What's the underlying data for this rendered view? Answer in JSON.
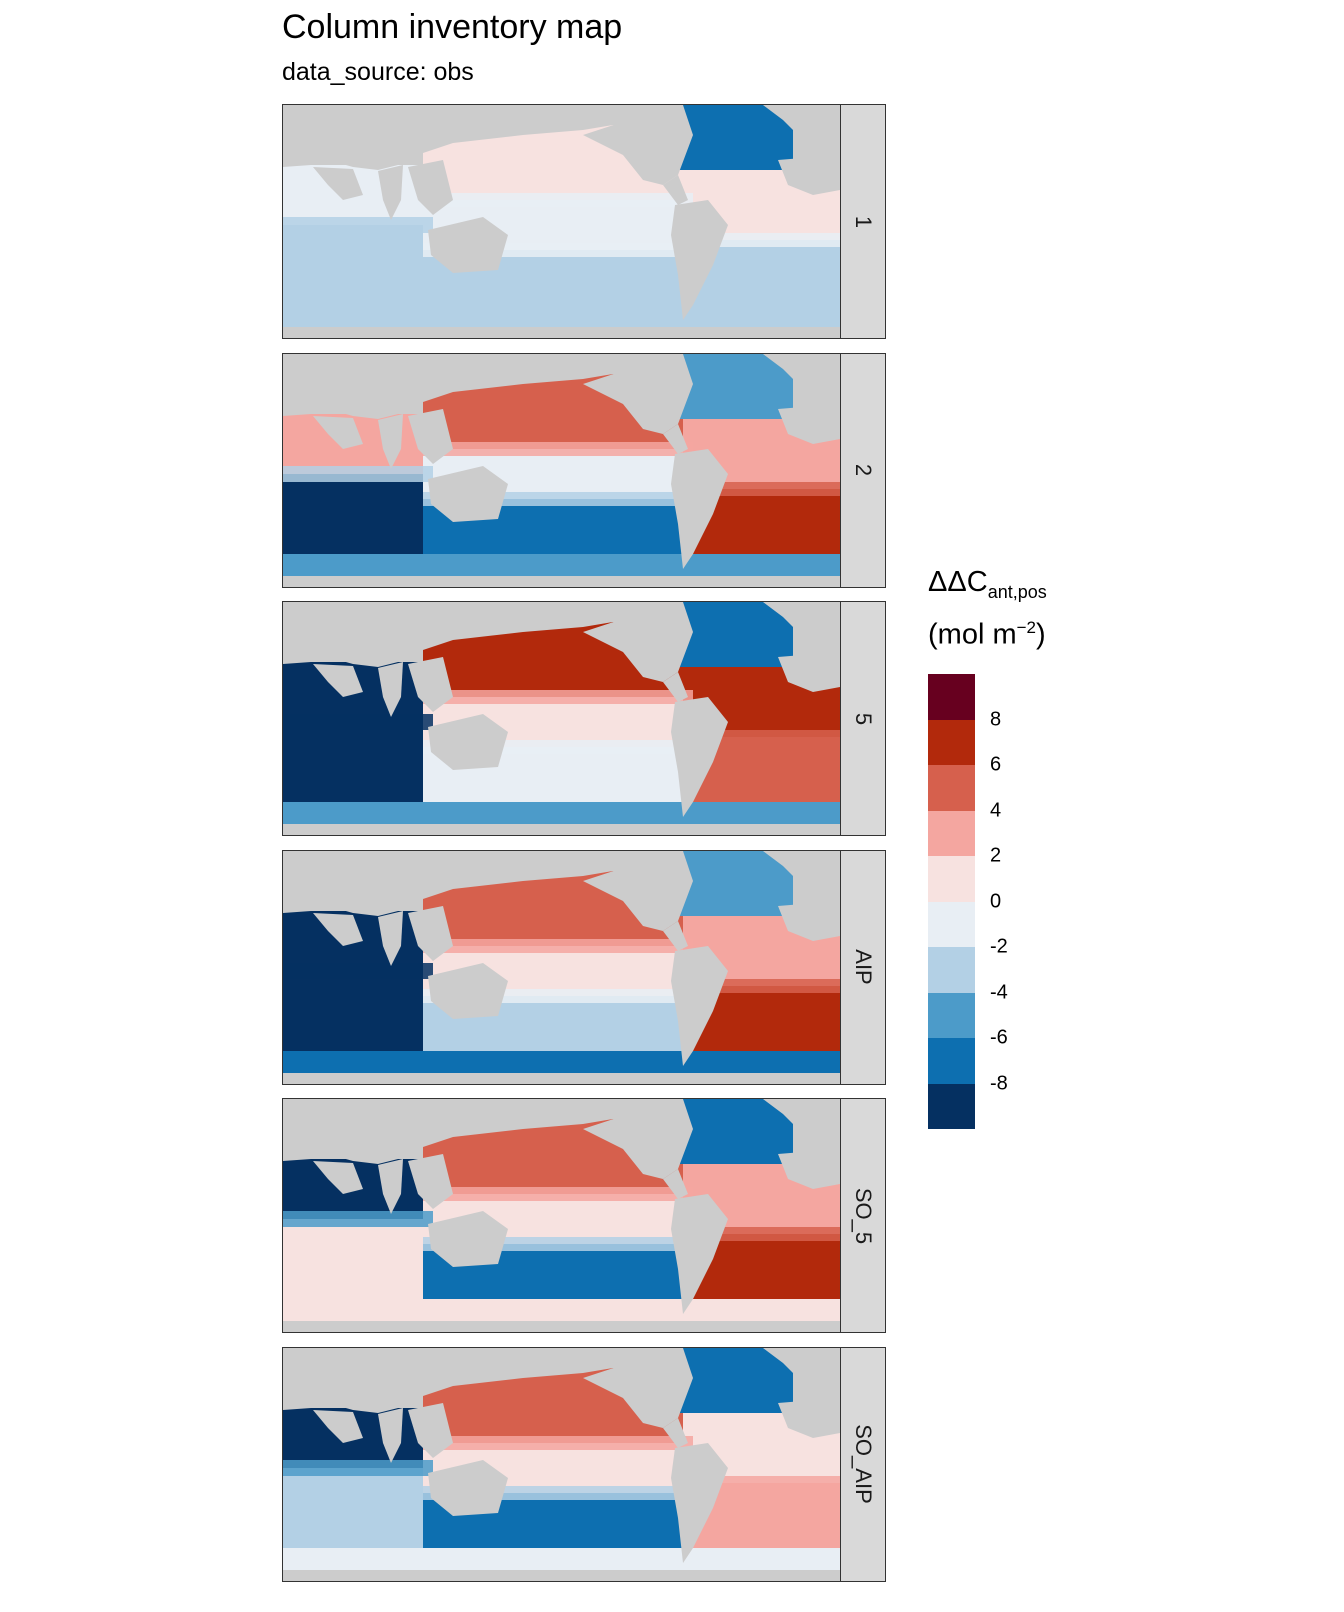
{
  "header": {
    "title": "Column inventory map",
    "subtitle": "data_source: obs"
  },
  "legend": {
    "title_main": "ΔΔC",
    "title_sub": "ant,pos",
    "unit_main": "(mol m",
    "unit_sup": "−2",
    "unit_end": ")",
    "colors": [
      "#67001f",
      "#b2290c",
      "#d6604d",
      "#f4a6a0",
      "#f7e2e0",
      "#e8eef4",
      "#b3d0e5",
      "#4c9bc9",
      "#0d6fb0",
      "#053061"
    ],
    "ticks": [
      "8",
      "6",
      "4",
      "2",
      "0",
      "-2",
      "-4",
      "-6",
      "-8"
    ],
    "tick_values": [
      8,
      6,
      4,
      2,
      0,
      -2,
      -4,
      -6,
      -8
    ]
  },
  "colors": {
    "land": "#cccccc",
    "strip": "#d9d9d9",
    "frame": "#333333"
  },
  "panels": [
    {
      "label": "1",
      "pattern": {
        "io_north": -1,
        "io_south": -3,
        "pac_north": 0.5,
        "pac_mid": -0.5,
        "pac_south": -2,
        "atl_north": -7,
        "atl_mid": 0.5,
        "atl_south": -2.5,
        "so": -3
      }
    },
    {
      "label": "2",
      "pattern": {
        "io_north": 3,
        "io_south": -8,
        "pac_north": 5,
        "pac_mid": 0,
        "pac_south": -6,
        "atl_north": -5,
        "atl_mid": 3,
        "atl_south": 8,
        "so": -4
      }
    },
    {
      "label": "5",
      "pattern": {
        "io_north": -9,
        "io_south": -9,
        "pac_north": 7,
        "pac_mid": 1,
        "pac_south": -1,
        "atl_north": -6,
        "atl_mid": 7,
        "atl_south": 5,
        "so": -4
      }
    },
    {
      "label": "AIP",
      "pattern": {
        "io_north": -9,
        "io_south": -9,
        "pac_north": 5,
        "pac_mid": 1,
        "pac_south": -2,
        "atl_north": -5,
        "atl_mid": 3,
        "atl_south": 7,
        "so": -6
      }
    },
    {
      "label": "SO_5",
      "pattern": {
        "io_north": -9,
        "io_south": 1,
        "pac_north": 5,
        "pac_mid": 2,
        "pac_south": -7,
        "atl_north": -7,
        "atl_mid": 3,
        "atl_south": 8,
        "so": 1
      }
    },
    {
      "label": "SO_AIP",
      "pattern": {
        "io_north": -9,
        "io_south": -2,
        "pac_north": 5,
        "pac_mid": 1,
        "pac_south": -6,
        "atl_north": -7,
        "atl_mid": 1,
        "atl_south": 4,
        "so": 0
      }
    }
  ]
}
